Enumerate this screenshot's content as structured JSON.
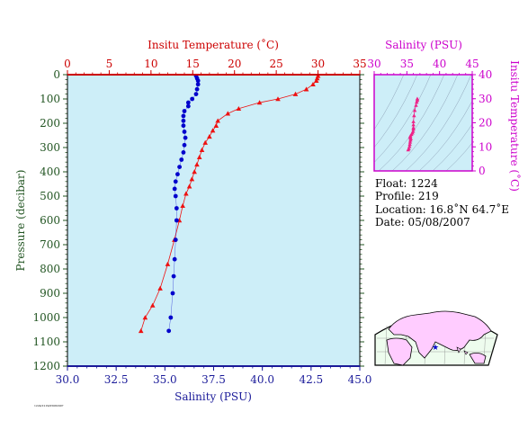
{
  "chart_data": [
    {
      "type": "line",
      "top_axis": {
        "label": "Insitu Temperature (˚C)",
        "ticks": [
          "0",
          "5",
          "10",
          "15",
          "20",
          "25",
          "30",
          "35"
        ],
        "range": [
          0,
          35
        ],
        "color": "#cc0000"
      },
      "bottom_axis": {
        "label": "Salinity (PSU)",
        "ticks": [
          "30.0",
          "32.5",
          "35.0",
          "37.5",
          "40.0",
          "42.5",
          "45.0"
        ],
        "range": [
          30,
          45
        ],
        "color": "#1a1a99"
      },
      "left_axis": {
        "label": "Pressure (decibar)",
        "ticks": [
          "0",
          "100",
          "200",
          "300",
          "400",
          "500",
          "600",
          "700",
          "800",
          "900",
          "1000",
          "1100",
          "1200"
        ],
        "range": [
          0,
          1200
        ],
        "inverted": true,
        "color": "#225522"
      },
      "series": [
        {
          "key": "temperature",
          "color": "#ee1111",
          "marker": "triangle",
          "points": [
            [
              30.0,
              5
            ],
            [
              29.9,
              15
            ],
            [
              29.8,
              25
            ],
            [
              29.4,
              40
            ],
            [
              28.6,
              60
            ],
            [
              27.3,
              80
            ],
            [
              25.2,
              100
            ],
            [
              23.0,
              115
            ],
            [
              20.5,
              140
            ],
            [
              19.2,
              160
            ],
            [
              18.0,
              190
            ],
            [
              17.8,
              210
            ],
            [
              17.4,
              230
            ],
            [
              17.0,
              255
            ],
            [
              16.5,
              280
            ],
            [
              16.1,
              310
            ],
            [
              15.8,
              340
            ],
            [
              15.5,
              370
            ],
            [
              15.2,
              400
            ],
            [
              14.9,
              430
            ],
            [
              14.6,
              460
            ],
            [
              14.2,
              490
            ],
            [
              13.8,
              540
            ],
            [
              13.4,
              600
            ],
            [
              12.8,
              680
            ],
            [
              12.0,
              780
            ],
            [
              11.1,
              880
            ],
            [
              10.2,
              950
            ],
            [
              9.3,
              1000
            ],
            [
              8.8,
              1055
            ]
          ]
        },
        {
          "key": "salinity",
          "color": "#0000cc",
          "marker": "circle",
          "points": [
            [
              36.6,
              5
            ],
            [
              36.65,
              15
            ],
            [
              36.7,
              25
            ],
            [
              36.7,
              40
            ],
            [
              36.65,
              60
            ],
            [
              36.6,
              80
            ],
            [
              36.4,
              100
            ],
            [
              36.2,
              115
            ],
            [
              36.2,
              130
            ],
            [
              36.0,
              150
            ],
            [
              35.95,
              170
            ],
            [
              35.95,
              190
            ],
            [
              35.95,
              210
            ],
            [
              36.0,
              235
            ],
            [
              36.05,
              260
            ],
            [
              36.0,
              290
            ],
            [
              35.95,
              320
            ],
            [
              35.85,
              350
            ],
            [
              35.75,
              380
            ],
            [
              35.65,
              410
            ],
            [
              35.55,
              440
            ],
            [
              35.5,
              470
            ],
            [
              35.55,
              500
            ],
            [
              35.6,
              550
            ],
            [
              35.6,
              600
            ],
            [
              35.55,
              680
            ],
            [
              35.5,
              760
            ],
            [
              35.45,
              830
            ],
            [
              35.4,
              900
            ],
            [
              35.3,
              1000
            ],
            [
              35.2,
              1055
            ]
          ]
        }
      ]
    },
    {
      "type": "scatter",
      "x_axis": {
        "label": "Salinity (PSU)",
        "ticks": [
          "30",
          "35",
          "40",
          "45"
        ],
        "range": [
          30,
          45
        ],
        "color": "#cc00cc"
      },
      "y_axis": {
        "label": "Insitu Temperature (˚C)",
        "ticks": [
          "0",
          "10",
          "20",
          "30",
          "40"
        ],
        "range": [
          0,
          40
        ],
        "color": "#cc00cc"
      },
      "series": [
        {
          "key": "ts",
          "color": "#ee2288",
          "marker": "triangle",
          "points": [
            [
              36.6,
              30.0
            ],
            [
              36.6,
              29.4
            ],
            [
              36.5,
              28.6
            ],
            [
              36.4,
              27.3
            ],
            [
              36.2,
              25.2
            ],
            [
              36.1,
              23.0
            ],
            [
              36.0,
              20.5
            ],
            [
              36.0,
              19.2
            ],
            [
              36.0,
              18.0
            ],
            [
              36.0,
              17.4
            ],
            [
              35.95,
              16.5
            ],
            [
              35.85,
              15.8
            ],
            [
              35.7,
              15.2
            ],
            [
              35.55,
              14.6
            ],
            [
              35.5,
              14.2
            ],
            [
              35.55,
              13.8
            ],
            [
              35.6,
              13.4
            ],
            [
              35.55,
              12.8
            ],
            [
              35.5,
              12.0
            ],
            [
              35.45,
              11.1
            ],
            [
              35.4,
              10.2
            ],
            [
              35.3,
              9.3
            ],
            [
              35.2,
              8.8
            ]
          ]
        }
      ]
    }
  ],
  "info": {
    "float": "Float:  1224",
    "profile": "Profile:  219",
    "location": "Location:  16.8˚N  64.7˚E",
    "date": "Date:  05/08/2007"
  },
  "map": {
    "marker_label": "float location",
    "land_color": "#ffccff",
    "ocean_color": "#eefcee",
    "marker_color": "#0000cc"
  },
  "footer": {
    "code": "1224/1219/05082007"
  },
  "colors": {
    "plot_bg": "#cdeef8",
    "red": "#cc0000",
    "blue": "#1a1a99",
    "magenta": "#cc00cc",
    "green": "#225522"
  }
}
